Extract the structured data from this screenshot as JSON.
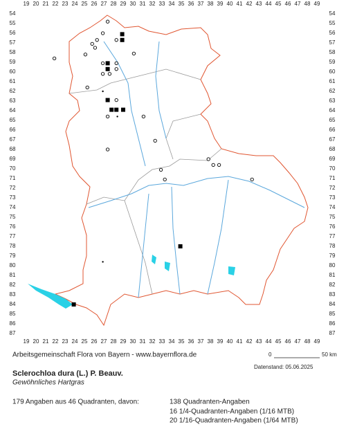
{
  "map": {
    "columns": [
      19,
      20,
      21,
      22,
      23,
      24,
      25,
      26,
      27,
      28,
      29,
      30,
      31,
      32,
      33,
      34,
      35,
      36,
      37,
      38,
      39,
      40,
      41,
      42,
      43,
      44,
      45,
      46,
      47,
      48,
      49
    ],
    "rows": [
      54,
      55,
      56,
      57,
      58,
      59,
      60,
      61,
      62,
      63,
      64,
      65,
      66,
      67,
      68,
      69,
      70,
      71,
      72,
      73,
      74,
      75,
      76,
      77,
      78,
      79,
      80,
      81,
      82,
      83,
      84,
      85,
      86,
      87
    ],
    "records": [
      {
        "x": 27.4,
        "y": 54.8,
        "kind": "circle"
      },
      {
        "x": 26.9,
        "y": 56,
        "kind": "circle"
      },
      {
        "x": 26.3,
        "y": 56.7,
        "kind": "circle"
      },
      {
        "x": 25.8,
        "y": 57.1,
        "kind": "circle"
      },
      {
        "x": 26.1,
        "y": 57.5,
        "kind": "circle"
      },
      {
        "x": 28.9,
        "y": 56.1,
        "kind": "square"
      },
      {
        "x": 28.9,
        "y": 56.7,
        "kind": "square"
      },
      {
        "x": 28.3,
        "y": 56.7,
        "kind": "circle"
      },
      {
        "x": 25.1,
        "y": 58.2,
        "kind": "circle"
      },
      {
        "x": 30.1,
        "y": 58.1,
        "kind": "circle"
      },
      {
        "x": 21.9,
        "y": 58.6,
        "kind": "circle"
      },
      {
        "x": 26.9,
        "y": 59.1,
        "kind": "circle"
      },
      {
        "x": 27.4,
        "y": 59.1,
        "kind": "square"
      },
      {
        "x": 28.3,
        "y": 59.1,
        "kind": "circle"
      },
      {
        "x": 27.4,
        "y": 59.7,
        "kind": "square"
      },
      {
        "x": 28.3,
        "y": 59.7,
        "kind": "circle"
      },
      {
        "x": 26.9,
        "y": 60.2,
        "kind": "circle"
      },
      {
        "x": 27.6,
        "y": 60.2,
        "kind": "circle"
      },
      {
        "x": 25.3,
        "y": 61.6,
        "kind": "circle"
      },
      {
        "x": 26.9,
        "y": 62,
        "kind": "dot"
      },
      {
        "x": 27.4,
        "y": 62.9,
        "kind": "square"
      },
      {
        "x": 28.3,
        "y": 62.9,
        "kind": "circle"
      },
      {
        "x": 27.8,
        "y": 63.9,
        "kind": "square"
      },
      {
        "x": 28.3,
        "y": 63.9,
        "kind": "square"
      },
      {
        "x": 29,
        "y": 63.9,
        "kind": "square"
      },
      {
        "x": 27.4,
        "y": 64.6,
        "kind": "circle"
      },
      {
        "x": 28.4,
        "y": 64.6,
        "kind": "dot"
      },
      {
        "x": 31.1,
        "y": 64.6,
        "kind": "circle"
      },
      {
        "x": 32.3,
        "y": 67.1,
        "kind": "circle"
      },
      {
        "x": 27.4,
        "y": 68,
        "kind": "circle"
      },
      {
        "x": 37.8,
        "y": 69,
        "kind": "circle"
      },
      {
        "x": 38.3,
        "y": 69.6,
        "kind": "circle"
      },
      {
        "x": 38.9,
        "y": 69.6,
        "kind": "circle"
      },
      {
        "x": 32.9,
        "y": 70.1,
        "kind": "circle"
      },
      {
        "x": 33.3,
        "y": 71.1,
        "kind": "circle"
      },
      {
        "x": 42.3,
        "y": 71.1,
        "kind": "circle"
      },
      {
        "x": 34.9,
        "y": 78,
        "kind": "square"
      },
      {
        "x": 26.9,
        "y": 79.6,
        "kind": "dot"
      },
      {
        "x": 23.9,
        "y": 84,
        "kind": "square"
      }
    ]
  },
  "footer": {
    "credit": "Arbeitsgemeinschaft Flora von Bayern - www.bayernflora.de",
    "scale_start": "0",
    "scale_end": "50 km",
    "date": "Datenstand: 05.06.2025",
    "species": "Sclerochloa dura (L.) P. Beauv.",
    "common_name": "Gewöhnliches Hartgras",
    "stats": [
      "179 Angaben aus 46 Quadranten, davon:",
      "138 Quadranten-Angaben",
      "16 1/4-Quadranten-Angaben (1/16 MTB)",
      "20 1/16-Quadranten-Angaben (1/64 MTB)"
    ]
  }
}
